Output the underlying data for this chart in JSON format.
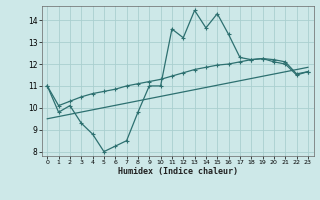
{
  "xlabel": "Humidex (Indice chaleur)",
  "background_color": "#cde8e8",
  "grid_color": "#aacfcf",
  "line_color": "#2d7070",
  "xlim": [
    -0.5,
    23.5
  ],
  "ylim": [
    7.8,
    14.65
  ],
  "xticks": [
    0,
    1,
    2,
    3,
    4,
    5,
    6,
    7,
    8,
    9,
    10,
    11,
    12,
    13,
    14,
    15,
    16,
    17,
    18,
    19,
    20,
    21,
    22,
    23
  ],
  "yticks": [
    8,
    9,
    10,
    11,
    12,
    13,
    14
  ],
  "line1_x": [
    0,
    1,
    2,
    3,
    4,
    5,
    6,
    7,
    8,
    9,
    10,
    11,
    12,
    13,
    14,
    15,
    16,
    17,
    18,
    19,
    20,
    21,
    22,
    23
  ],
  "line1_y": [
    11.0,
    9.8,
    10.1,
    9.3,
    8.8,
    8.0,
    8.25,
    8.5,
    9.8,
    11.0,
    11.0,
    13.6,
    13.2,
    14.45,
    13.65,
    14.3,
    13.35,
    12.3,
    12.2,
    12.25,
    12.1,
    12.0,
    11.5,
    11.65
  ],
  "line2_x": [
    0,
    1,
    2,
    3,
    4,
    5,
    6,
    7,
    8,
    9,
    10,
    11,
    12,
    13,
    14,
    15,
    16,
    17,
    18,
    19,
    20,
    21,
    22,
    23
  ],
  "line2_y": [
    11.0,
    10.1,
    10.3,
    10.5,
    10.65,
    10.75,
    10.85,
    11.0,
    11.1,
    11.2,
    11.3,
    11.45,
    11.6,
    11.75,
    11.85,
    11.95,
    12.0,
    12.1,
    12.2,
    12.25,
    12.2,
    12.1,
    11.55,
    11.65
  ],
  "line3_x": [
    0,
    23
  ],
  "line3_y": [
    9.5,
    11.85
  ]
}
